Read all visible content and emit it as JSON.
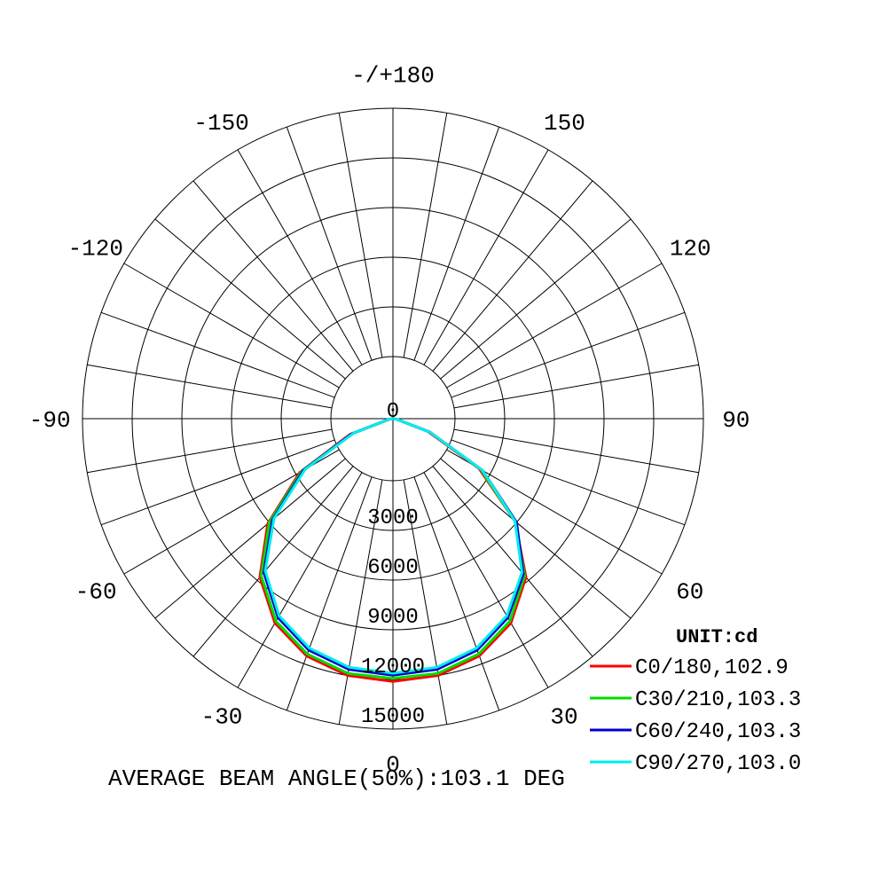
{
  "chart_data": {
    "type": "polar-line",
    "unit_label": "UNIT:cd",
    "radial_ticks": [
      0,
      3000,
      6000,
      9000,
      12000,
      15000
    ],
    "radial_tick_labels": [
      "0",
      "3000",
      "6000",
      "9000",
      "12000",
      "15000"
    ],
    "r_max": 15000,
    "angle_labels": [
      {
        "angle": 180,
        "text": "-/+180"
      },
      {
        "angle": 150,
        "text": "150"
      },
      {
        "angle": -150,
        "text": "-150"
      },
      {
        "angle": 120,
        "text": "120"
      },
      {
        "angle": -120,
        "text": "-120"
      },
      {
        "angle": 90,
        "text": "90"
      },
      {
        "angle": -90,
        "text": "-90"
      },
      {
        "angle": 60,
        "text": "60"
      },
      {
        "angle": -60,
        "text": "-60"
      },
      {
        "angle": 30,
        "text": "30"
      },
      {
        "angle": -30,
        "text": "-30"
      },
      {
        "angle": 0,
        "text": "0"
      }
    ],
    "gamma": [
      -90,
      -80,
      -70,
      -60,
      -50,
      -40,
      -30,
      -20,
      -10,
      0,
      10,
      20,
      30,
      40,
      50,
      60,
      70,
      80,
      90
    ],
    "series": [
      {
        "name": "C0/180,102.9",
        "color": "#ff0000",
        "values": [
          0,
          200,
          2200,
          5200,
          7900,
          10000,
          11400,
          12200,
          12600,
          12700,
          12600,
          12200,
          11400,
          10000,
          7700,
          4800,
          1800,
          200,
          0
        ]
      },
      {
        "name": "C30/210,103.3",
        "color": "#00dd00",
        "values": [
          0,
          200,
          2100,
          5100,
          7800,
          9900,
          11300,
          12100,
          12500,
          12550,
          12500,
          12100,
          11300,
          9900,
          7700,
          4900,
          1900,
          200,
          0
        ]
      },
      {
        "name": "C60/240,103.3",
        "color": "#0000cc",
        "values": [
          0,
          200,
          2100,
          5000,
          7600,
          9700,
          11100,
          11900,
          12300,
          12400,
          12300,
          11900,
          11100,
          9800,
          7800,
          5000,
          1900,
          200,
          0
        ]
      },
      {
        "name": "C90/270,103.0",
        "color": "#00eeee",
        "values": [
          0,
          200,
          2000,
          4900,
          7500,
          9600,
          11000,
          11800,
          12200,
          12300,
          12200,
          11800,
          11000,
          9700,
          7700,
          5000,
          1900,
          200,
          0
        ]
      }
    ]
  },
  "footer": {
    "beam_angle_text": "AVERAGE BEAM ANGLE(50%):103.1 DEG"
  }
}
